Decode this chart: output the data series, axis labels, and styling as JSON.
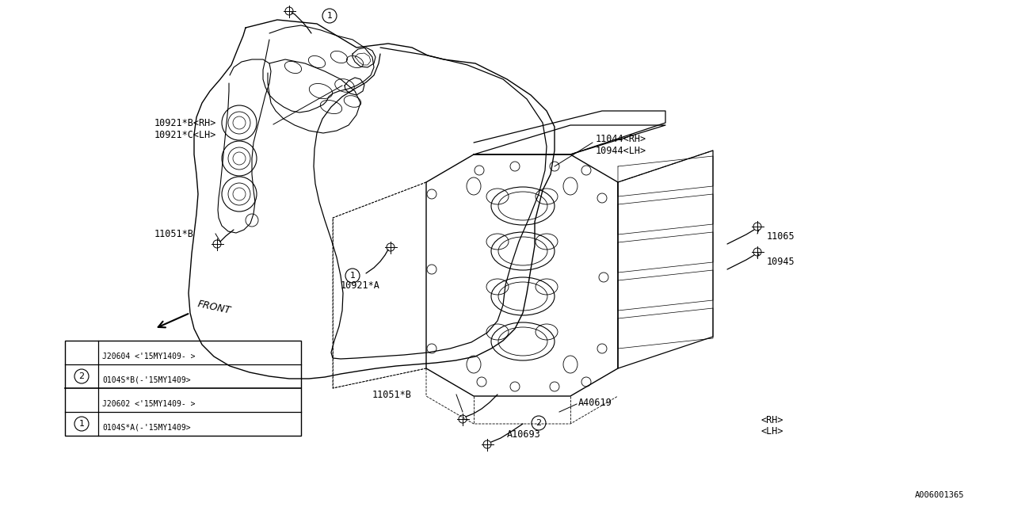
{
  "bg_color": "#ffffff",
  "line_color": "#000000",
  "fig_width": 12.8,
  "fig_height": 6.4,
  "watermark": "A006001365",
  "labels": {
    "part_10921B": "10921*B<RH>",
    "part_10921C": "10921*C<LH>",
    "part_11051B_left": "11051*B",
    "part_front": "FRONT",
    "part_10921A": "10921*A",
    "part_11044": "11044<RH>",
    "part_10944": "10944<LH>",
    "part_11065": "11065",
    "part_10945": "10945",
    "part_11051B_right": "11051*B",
    "part_A40619": "A40619",
    "part_A10693": "A10693",
    "part_RH_label": "<RH>",
    "part_LH_label": "<LH>",
    "table_row1_a": "0104S*A(-'15MY1409>",
    "table_row1_b": "J20602 <'15MY1409- >",
    "table_row2_a": "0104S*B(-'15MY1409>",
    "table_row2_b": "J20604 <'15MY1409- >"
  }
}
